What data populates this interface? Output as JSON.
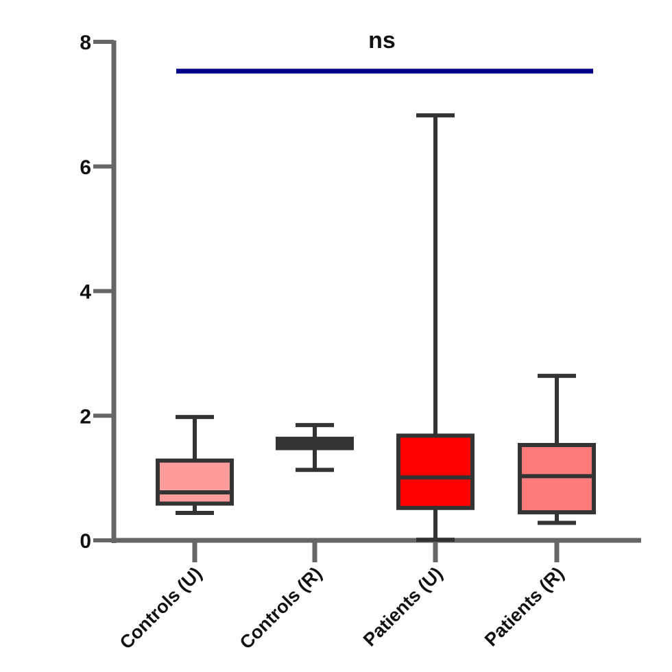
{
  "chart_data": {
    "type": "box",
    "title": "",
    "xlabel": "",
    "ylabel": "",
    "ylim": [
      0,
      8
    ],
    "y_ticks": [
      0,
      2,
      4,
      6,
      8
    ],
    "grid": false,
    "legend": null,
    "categories": [
      "Controls (U)",
      "Controls (R)",
      "Patients (U)",
      "Patients (R)"
    ],
    "series": [
      {
        "name": "Controls (U)",
        "whisker_low": 0.44,
        "q1": 0.59,
        "median": 0.77,
        "q3": 1.28,
        "whisker_high": 1.98,
        "color": "#ff9c9c"
      },
      {
        "name": "Controls (R)",
        "whisker_low": 1.13,
        "q1": 1.48,
        "median": 1.55,
        "q3": 1.63,
        "whisker_high": 1.85,
        "color": "#333333"
      },
      {
        "name": "Patients (U)",
        "whisker_low": 0.01,
        "q1": 0.52,
        "median": 1.01,
        "q3": 1.68,
        "whisker_high": 6.82,
        "color": "#ff0000"
      },
      {
        "name": "Patients (R)",
        "whisker_low": 0.28,
        "q1": 0.45,
        "median": 1.03,
        "q3": 1.53,
        "whisker_high": 2.64,
        "color": "#ff7b7b"
      }
    ],
    "annotations": [
      {
        "text": "ns",
        "type": "significance-bracket",
        "from": "Controls (U)",
        "to": "Patients (R)",
        "y": 7.53,
        "color": "#00008b"
      }
    ]
  },
  "colors": {
    "axis": "#666666",
    "box_edge": "#333333",
    "bracket": "#00008b"
  }
}
